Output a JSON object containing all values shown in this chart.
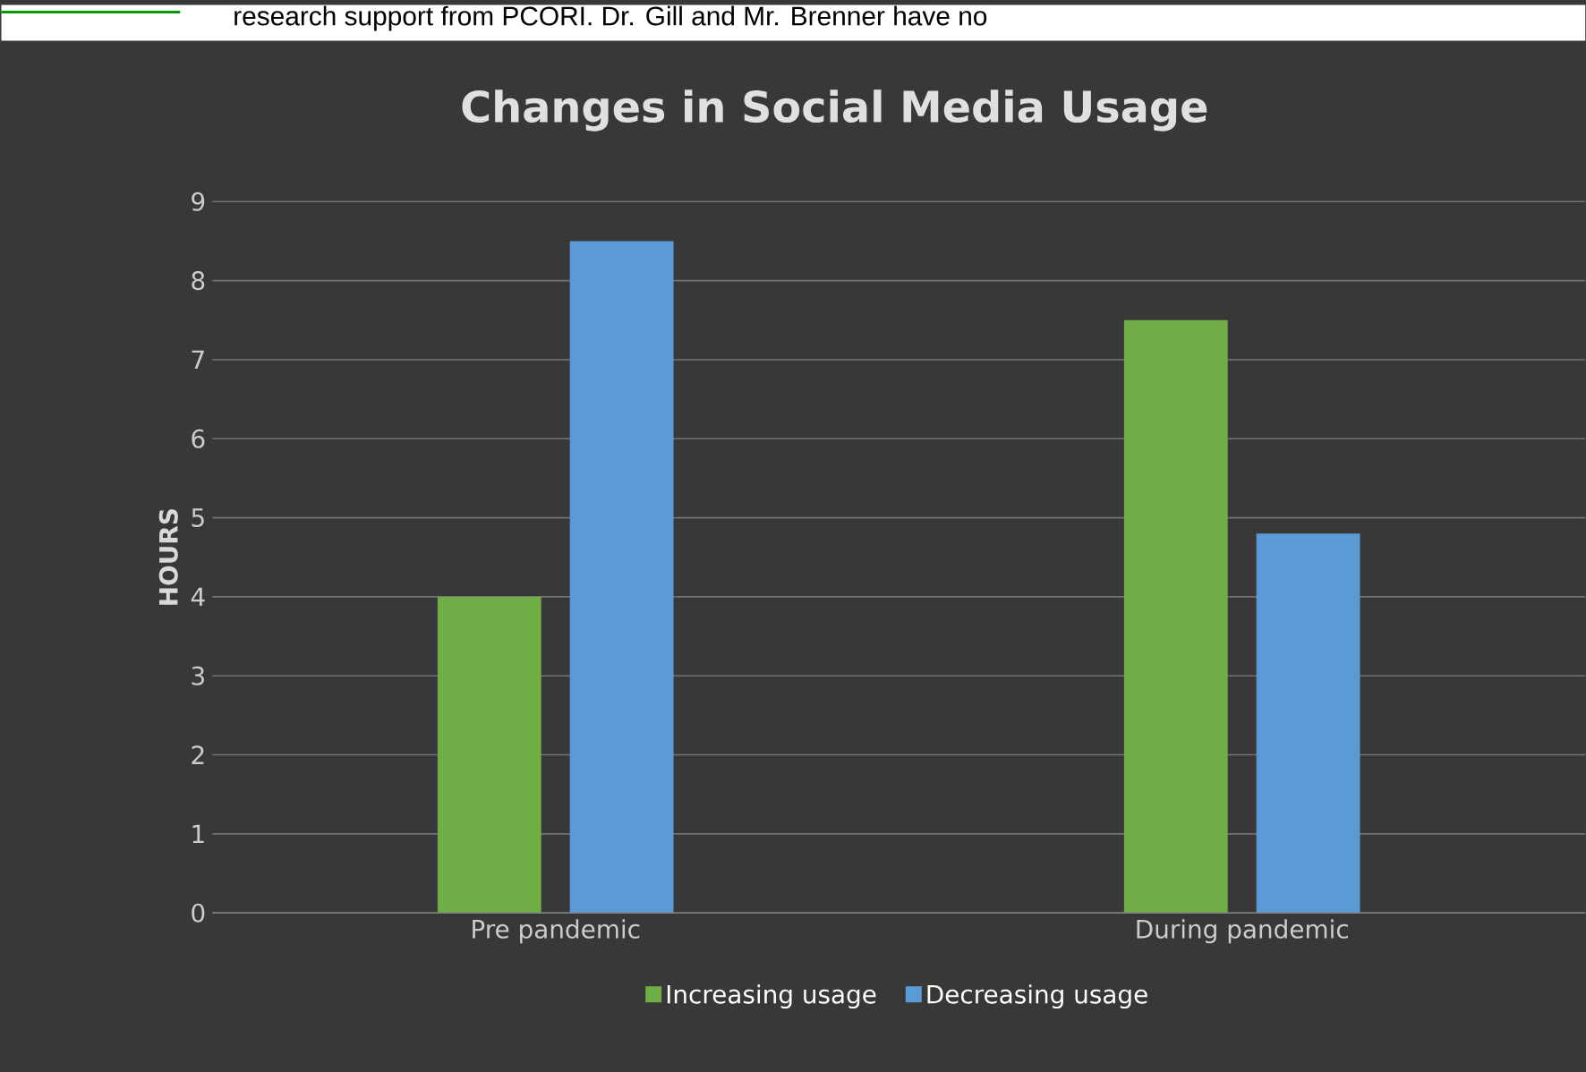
{
  "chart_data": {
    "type": "bar",
    "title": "Changes in Social Media Usage",
    "ylabel": "HOURS",
    "categories": [
      "Pre pandemic",
      "During pandemic"
    ],
    "series": [
      {
        "name": "Increasing usage",
        "color": "#6fad47",
        "values": [
          4,
          7.5
        ]
      },
      {
        "name": "Decreasing usage",
        "color": "#5b9bd5",
        "values": [
          8.5,
          4.8
        ]
      }
    ],
    "ylim": [
      0,
      9
    ],
    "yticks": [
      0,
      1,
      2,
      3,
      4,
      5,
      6,
      7,
      8,
      9
    ],
    "grid": "y",
    "legend": "bottom",
    "annotations": [
      "research support from PCORI. Dr. Gill and Mr. Brenner have no"
    ]
  }
}
